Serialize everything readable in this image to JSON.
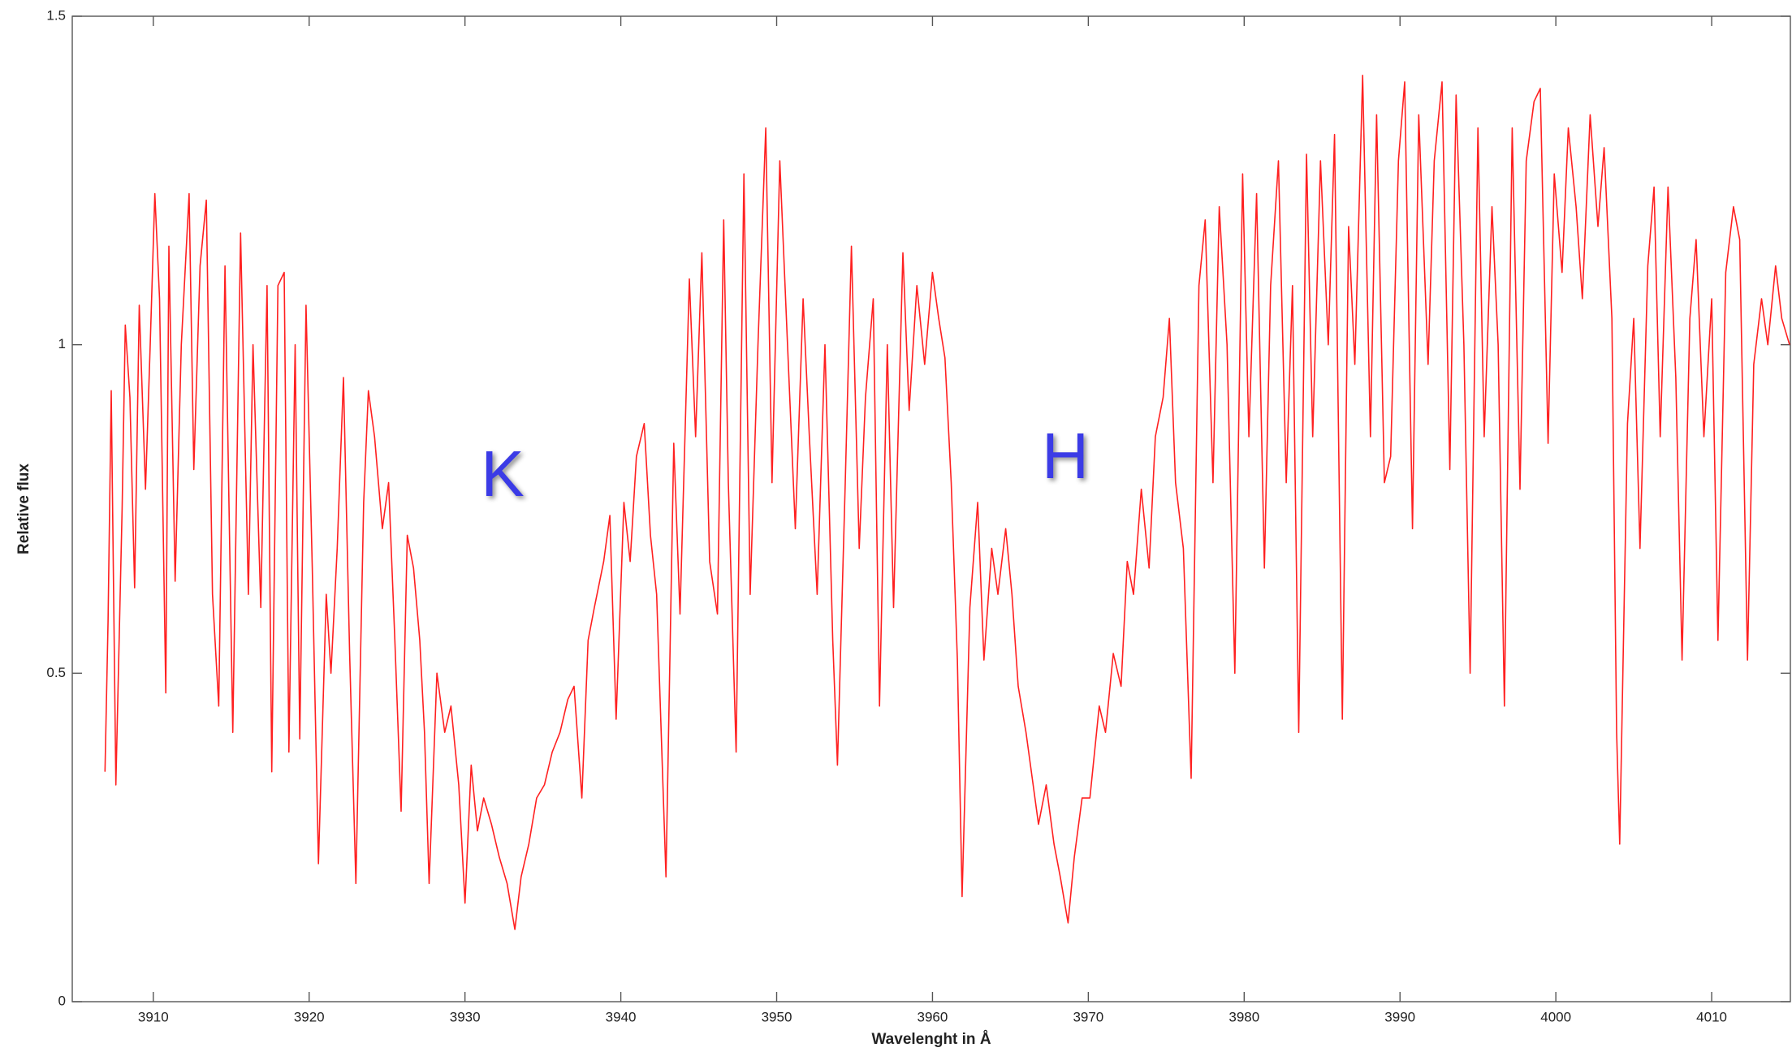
{
  "chart_data": {
    "type": "line",
    "xlabel": "Wavelenght in Å",
    "ylabel": "Relative flux",
    "annotations": [
      "K",
      "H"
    ],
    "color": "#ff2020",
    "xlim": [
      3904.8,
      4015.05
    ],
    "ylim": [
      0,
      1.5
    ],
    "xticks": [
      3910,
      3920,
      3930,
      3940,
      3950,
      3960,
      3970,
      3980,
      3990,
      4000,
      4010
    ],
    "yticks": [
      0,
      0.5,
      1,
      1.5
    ],
    "x": [
      3906.9,
      3907.1,
      3907.3,
      3907.6,
      3908.0,
      3908.2,
      3908.5,
      3908.8,
      3909.1,
      3909.5,
      3909.8,
      3910.1,
      3910.4,
      3910.8,
      3911.0,
      3911.4,
      3911.8,
      3912.3,
      3912.6,
      3913.0,
      3913.4,
      3913.8,
      3914.2,
      3914.6,
      3915.1,
      3915.6,
      3916.1,
      3916.4,
      3916.9,
      3917.3,
      3917.6,
      3918.0,
      3918.4,
      3918.7,
      3919.1,
      3919.4,
      3919.8,
      3920.2,
      3920.6,
      3921.1,
      3921.4,
      3921.8,
      3922.2,
      3922.6,
      3923.0,
      3923.5,
      3923.8,
      3924.2,
      3924.7,
      3925.1,
      3925.5,
      3925.9,
      3926.3,
      3926.7,
      3927.1,
      3927.4,
      3927.7,
      3928.2,
      3928.7,
      3929.1,
      3929.6,
      3930.0,
      3930.4,
      3930.8,
      3931.2,
      3931.7,
      3932.2,
      3932.7,
      3933.2,
      3933.6,
      3934.1,
      3934.6,
      3935.1,
      3935.6,
      3936.1,
      3936.6,
      3937.0,
      3937.5,
      3937.9,
      3938.3,
      3938.9,
      3939.3,
      3939.7,
      3940.2,
      3940.6,
      3941.0,
      3941.5,
      3941.9,
      3942.3,
      3942.9,
      3943.4,
      3943.8,
      3944.4,
      3944.8,
      3945.2,
      3945.7,
      3946.2,
      3946.6,
      3946.9,
      3947.4,
      3947.9,
      3948.3,
      3948.8,
      3949.3,
      3949.7,
      3950.2,
      3950.7,
      3951.2,
      3951.7,
      3952.1,
      3952.6,
      3953.1,
      3953.6,
      3953.9,
      3954.4,
      3954.8,
      3955.3,
      3955.7,
      3956.2,
      3956.6,
      3957.1,
      3957.5,
      3958.1,
      3958.5,
      3959.0,
      3959.5,
      3960.0,
      3960.4,
      3960.8,
      3961.2,
      3961.6,
      3961.9,
      3962.4,
      3962.9,
      3963.3,
      3963.8,
      3964.2,
      3964.7,
      3965.1,
      3965.5,
      3966.0,
      3966.4,
      3966.8,
      3967.3,
      3967.8,
      3968.2,
      3968.7,
      3969.1,
      3969.6,
      3970.1,
      3970.7,
      3971.1,
      3971.6,
      3972.1,
      3972.5,
      3972.9,
      3973.4,
      3973.9,
      3974.3,
      3974.8,
      3975.2,
      3975.6,
      3976.1,
      3976.6,
      3977.1,
      3977.5,
      3978.0,
      3978.4,
      3978.9,
      3979.4,
      3979.9,
      3980.3,
      3980.8,
      3981.3,
      3981.7,
      3982.2,
      3982.7,
      3983.1,
      3983.5,
      3984.0,
      3984.4,
      3984.9,
      3985.4,
      3985.8,
      3986.3,
      3986.7,
      3987.1,
      3987.6,
      3988.1,
      3988.5,
      3989.0,
      3989.4,
      3989.9,
      3990.3,
      3990.8,
      3991.2,
      3991.8,
      3992.2,
      3992.7,
      3993.2,
      3993.6,
      3994.1,
      3994.5,
      3995.0,
      3995.4,
      3995.9,
      3996.3,
      3996.7,
      3997.2,
      3997.7,
      3998.1,
      3998.6,
      3999.0,
      3999.5,
      3999.9,
      4000.4,
      4000.8,
      4001.3,
      4001.7,
      4002.2,
      4002.7,
      4003.1,
      4003.6,
      4003.9,
      4004.1,
      4004.6,
      4005.0,
      4005.4,
      4005.9,
      4006.3,
      4006.7,
      4007.2,
      4007.7,
      4008.1,
      4008.6,
      4009.0,
      4009.5,
      4010.0,
      4010.4,
      4010.9,
      4011.4,
      4011.8,
      4012.3,
      4012.7,
      4013.2,
      4013.6,
      4014.1,
      4014.5,
      4015.0
    ],
    "values": [
      0.35,
      0.58,
      0.93,
      0.33,
      0.75,
      1.03,
      0.92,
      0.63,
      1.06,
      0.78,
      1.0,
      1.23,
      1.07,
      0.47,
      1.15,
      0.64,
      1.0,
      1.23,
      0.81,
      1.12,
      1.22,
      0.62,
      0.45,
      1.12,
      0.41,
      1.17,
      0.62,
      1.0,
      0.6,
      1.09,
      0.35,
      1.09,
      1.11,
      0.38,
      1.0,
      0.4,
      1.06,
      0.66,
      0.21,
      0.62,
      0.5,
      0.69,
      0.95,
      0.53,
      0.18,
      0.76,
      0.93,
      0.86,
      0.72,
      0.79,
      0.55,
      0.29,
      0.71,
      0.66,
      0.55,
      0.41,
      0.18,
      0.5,
      0.41,
      0.45,
      0.33,
      0.15,
      0.36,
      0.26,
      0.31,
      0.27,
      0.22,
      0.18,
      0.11,
      0.19,
      0.24,
      0.31,
      0.33,
      0.38,
      0.41,
      0.46,
      0.48,
      0.31,
      0.55,
      0.6,
      0.67,
      0.74,
      0.43,
      0.76,
      0.67,
      0.83,
      0.88,
      0.71,
      0.62,
      0.19,
      0.85,
      0.59,
      1.1,
      0.86,
      1.14,
      0.67,
      0.59,
      1.19,
      0.79,
      0.38,
      1.26,
      0.62,
      1.0,
      1.33,
      0.79,
      1.28,
      1.0,
      0.72,
      1.07,
      0.86,
      0.62,
      1.0,
      0.55,
      0.36,
      0.79,
      1.15,
      0.69,
      0.92,
      1.07,
      0.45,
      1.0,
      0.6,
      1.14,
      0.9,
      1.09,
      0.97,
      1.11,
      1.04,
      0.98,
      0.79,
      0.52,
      0.16,
      0.6,
      0.76,
      0.52,
      0.69,
      0.62,
      0.72,
      0.62,
      0.48,
      0.41,
      0.34,
      0.27,
      0.33,
      0.24,
      0.19,
      0.12,
      0.22,
      0.31,
      0.31,
      0.45,
      0.41,
      0.53,
      0.48,
      0.67,
      0.62,
      0.78,
      0.66,
      0.86,
      0.92,
      1.04,
      0.79,
      0.69,
      0.34,
      1.09,
      1.19,
      0.79,
      1.21,
      1.0,
      0.5,
      1.26,
      0.86,
      1.23,
      0.66,
      1.09,
      1.28,
      0.79,
      1.09,
      0.41,
      1.29,
      0.86,
      1.28,
      1.0,
      1.32,
      0.43,
      1.18,
      0.97,
      1.41,
      0.86,
      1.35,
      0.79,
      0.83,
      1.28,
      1.4,
      0.72,
      1.35,
      0.97,
      1.28,
      1.4,
      0.81,
      1.38,
      1.0,
      0.5,
      1.33,
      0.86,
      1.21,
      1.0,
      0.45,
      1.33,
      0.78,
      1.28,
      1.37,
      1.39,
      0.85,
      1.26,
      1.11,
      1.33,
      1.21,
      1.07,
      1.35,
      1.18,
      1.3,
      1.04,
      0.41,
      0.24,
      0.88,
      1.04,
      0.69,
      1.12,
      1.24,
      0.86,
      1.24,
      0.95,
      0.52,
      1.04,
      1.16,
      0.86,
      1.07,
      0.55,
      1.11,
      1.21,
      1.16,
      0.52,
      0.97,
      1.07,
      1.0,
      1.12,
      1.04,
      1.0
    ]
  }
}
